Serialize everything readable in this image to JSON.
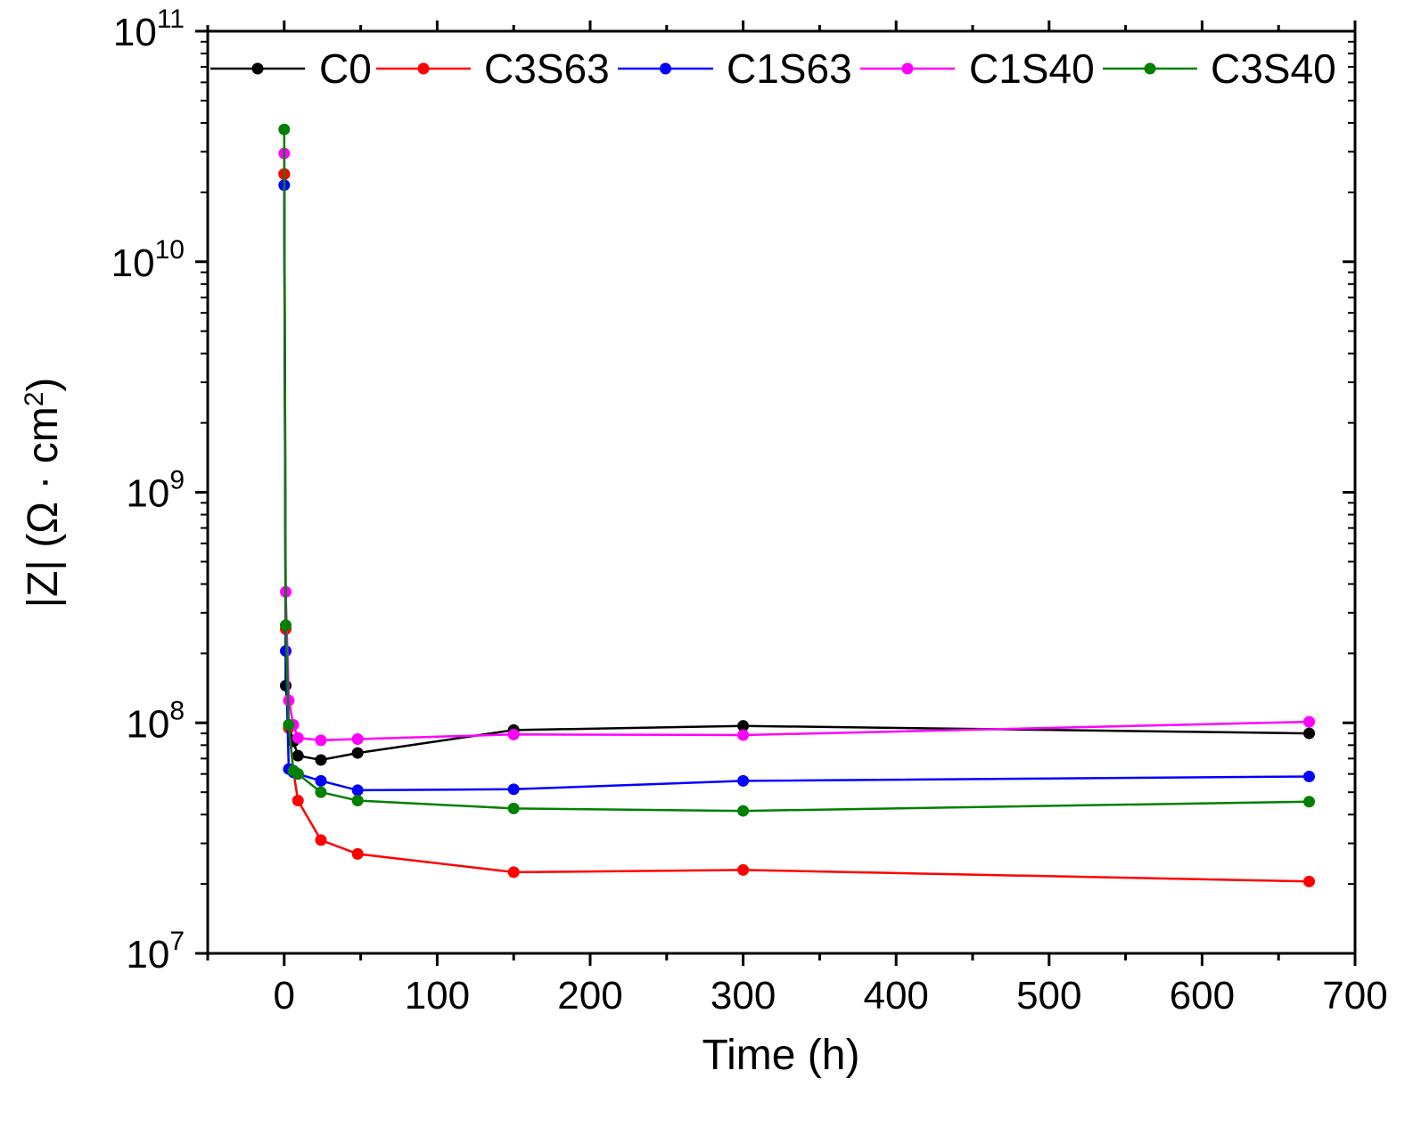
{
  "chart_data": {
    "type": "line",
    "title": "",
    "xlabel": "Time (h)",
    "ylabel": "|Z| (Ω · cm²)",
    "ylabel_parts": {
      "main": "|Z| (Ω · cm",
      "sup": "2",
      "end": ")"
    },
    "xlim": [
      -50,
      700
    ],
    "ylim": [
      10000000,
      100000000000
    ],
    "yscale": "log",
    "x_ticks": [
      0,
      100,
      200,
      300,
      400,
      500,
      600,
      700
    ],
    "x_tick_labels": [
      "0",
      "100",
      "200",
      "300",
      "400",
      "500",
      "600",
      "700"
    ],
    "y_ticks": [
      10000000,
      100000000,
      1000000000,
      10000000000,
      100000000000
    ],
    "y_tick_labels": [
      {
        "base": "10",
        "exp": "7"
      },
      {
        "base": "10",
        "exp": "8"
      },
      {
        "base": "10",
        "exp": "9"
      },
      {
        "base": "10",
        "exp": "10"
      },
      {
        "base": "10",
        "exp": "11"
      }
    ],
    "grid": false,
    "legend_position": "top",
    "series": [
      {
        "name": "C0",
        "color": "#000000",
        "x": [
          0,
          1,
          3,
          6,
          9,
          24,
          48,
          150,
          300,
          670
        ],
        "y": [
          24000000000,
          145000000,
          98000000,
          83000000,
          72000000,
          69000000,
          74000000,
          93000000,
          97000000,
          90000000
        ]
      },
      {
        "name": "C3S63",
        "color": "#ff0000",
        "x": [
          0,
          1,
          3,
          6,
          9,
          24,
          48,
          150,
          300,
          670
        ],
        "y": [
          24000000000,
          255000000,
          95000000,
          62000000,
          46000000,
          31000000,
          27000000,
          22500000,
          23000000,
          20500000
        ]
      },
      {
        "name": "C1S63",
        "color": "#0000ff",
        "x": [
          0,
          1,
          3,
          6,
          9,
          24,
          48,
          150,
          300,
          670
        ],
        "y": [
          21500000000,
          205000000,
          63000000,
          61000000,
          60000000,
          56000000,
          51000000,
          51500000,
          56000000,
          58500000
        ]
      },
      {
        "name": "C1S40",
        "color": "#ff00ff",
        "x": [
          0,
          1,
          3,
          6,
          9,
          24,
          48,
          150,
          300,
          670
        ],
        "y": [
          29500000000,
          370000000,
          125000000,
          98000000,
          86000000,
          84000000,
          85000000,
          89000000,
          88500000,
          101000000
        ]
      },
      {
        "name": "C3S40",
        "color": "#008000",
        "x": [
          0,
          1,
          3,
          6,
          9,
          24,
          48,
          150,
          300,
          670
        ],
        "y": [
          37500000000,
          265000000,
          98000000,
          62000000,
          60000000,
          50000000,
          46000000,
          42500000,
          41500000,
          45500000
        ]
      }
    ]
  }
}
